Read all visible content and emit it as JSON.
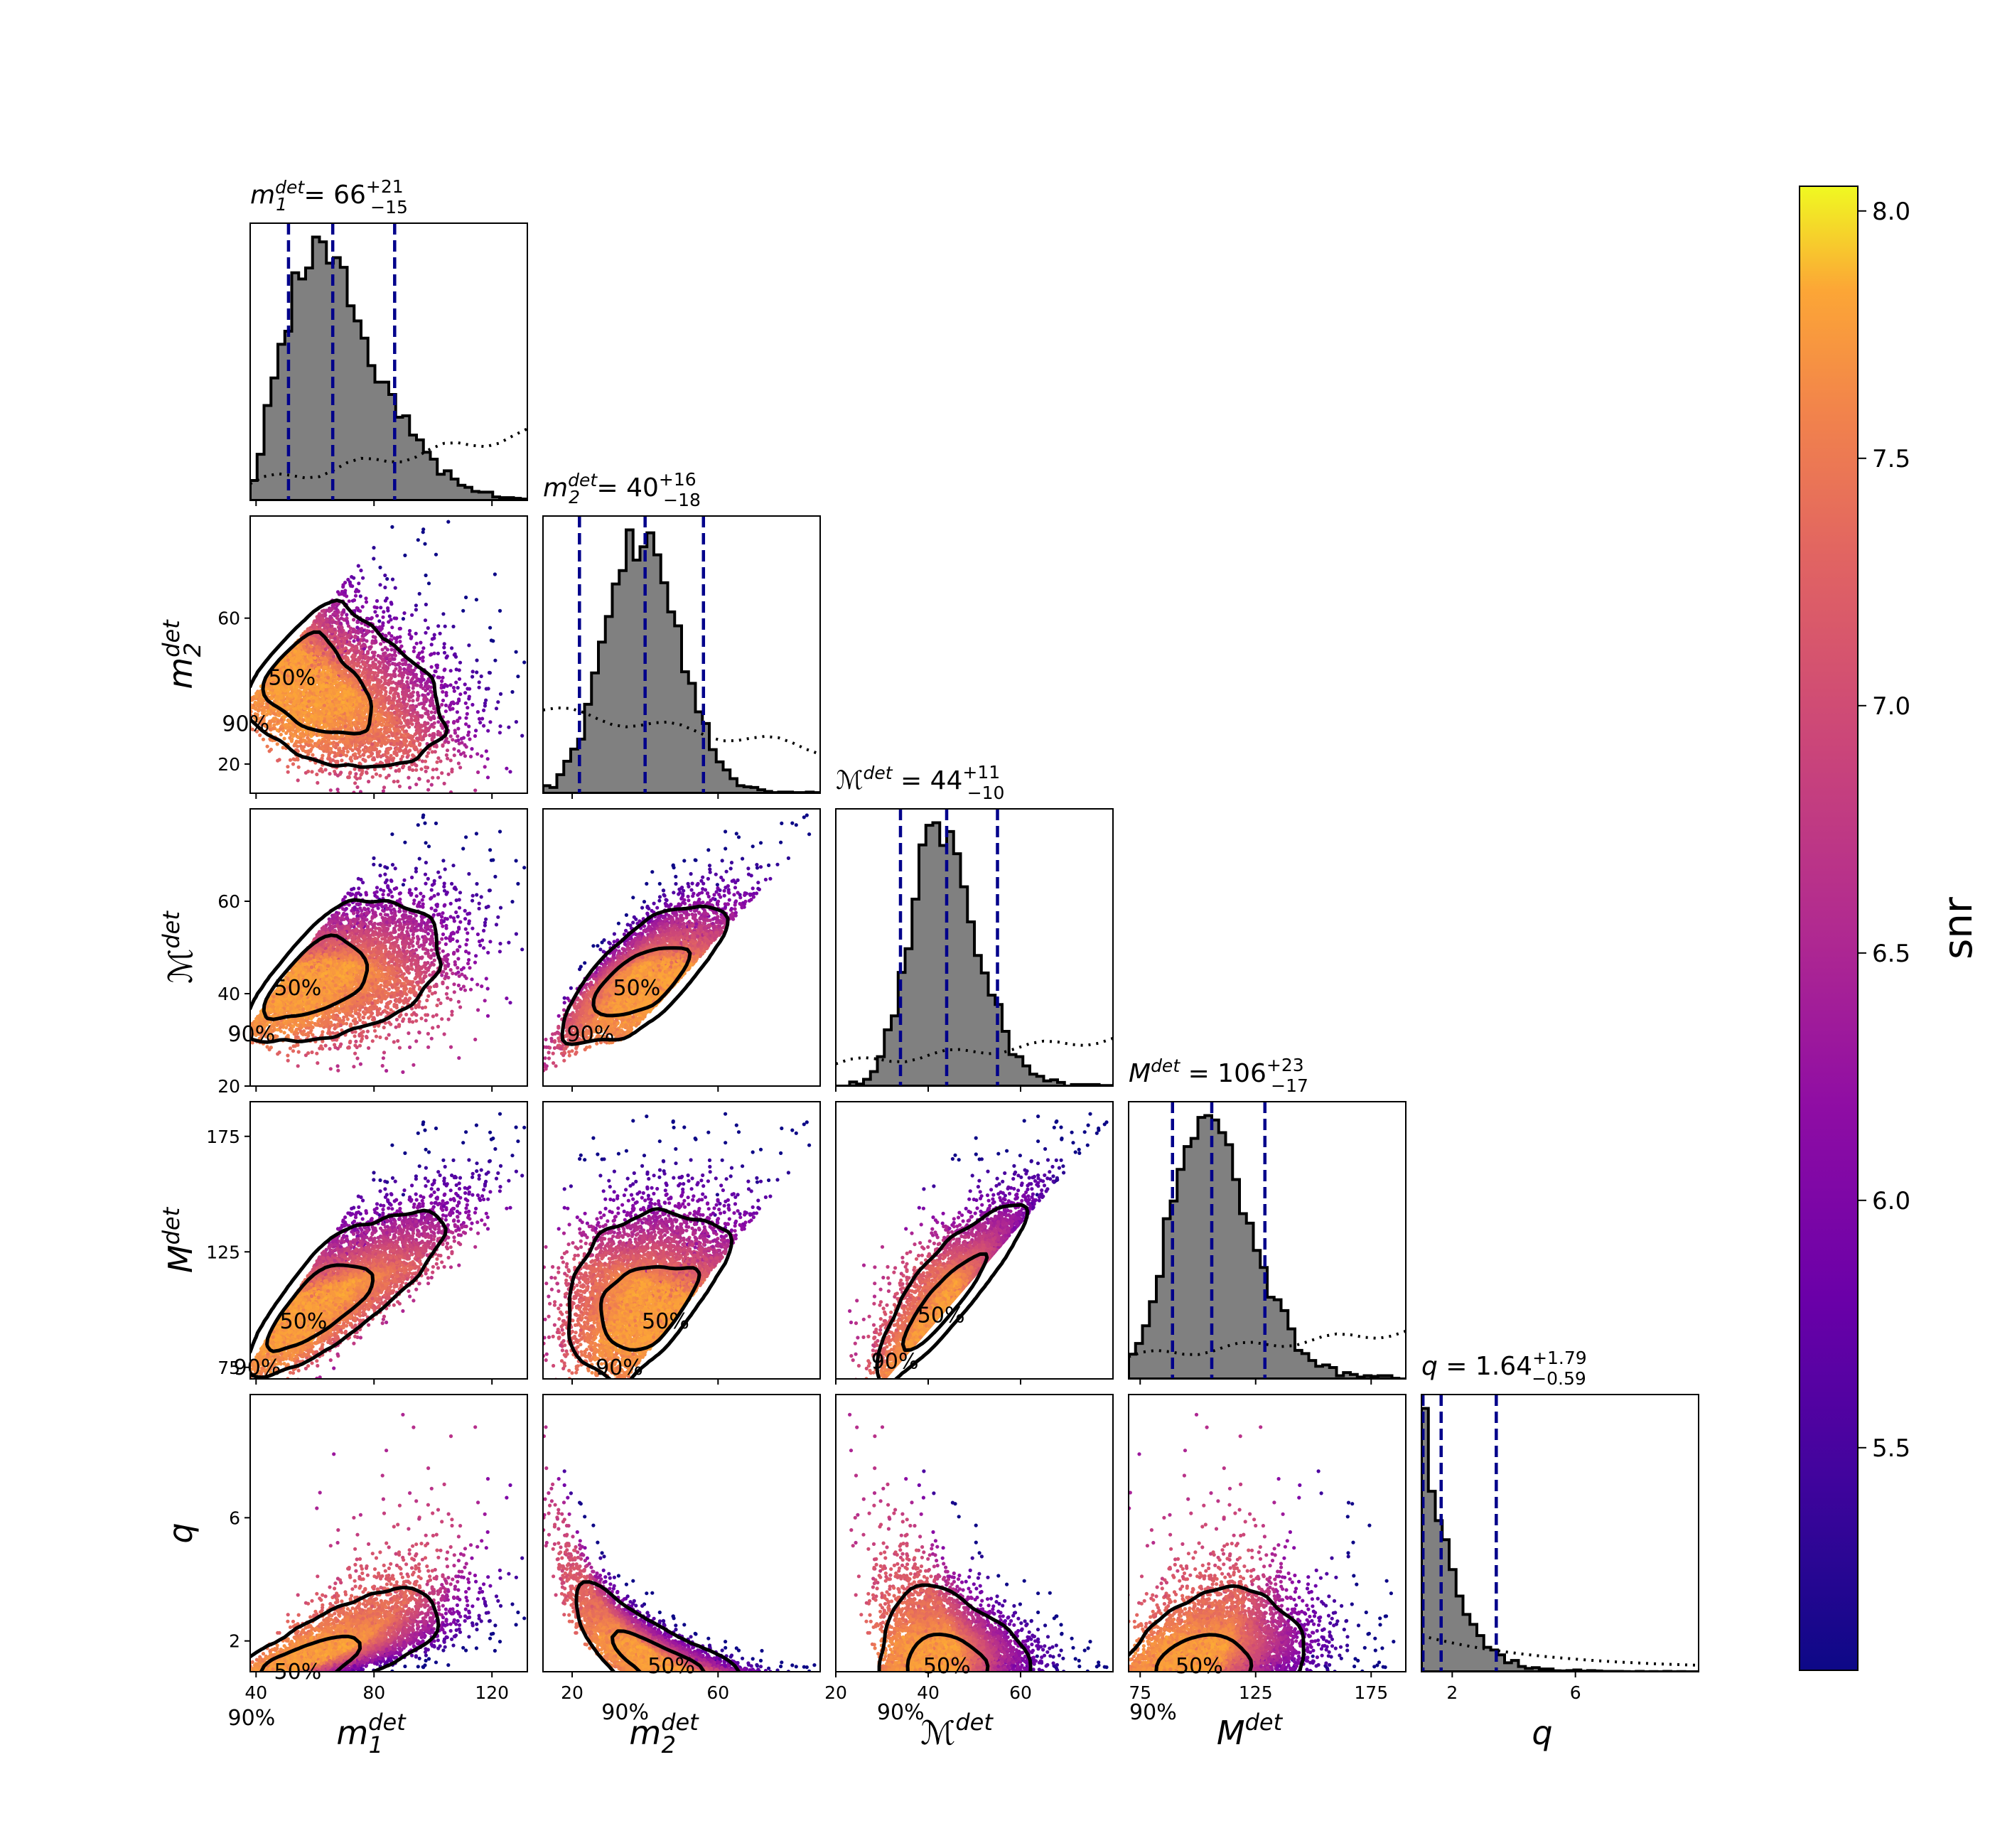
{
  "chart_data": {
    "type": "corner",
    "samples": 6000,
    "parameters": [
      {
        "key": "m1",
        "axis_label": "m",
        "sub": "1",
        "sup": "det",
        "title_main": "66",
        "title_plus": "+21",
        "title_minus": "−15",
        "median": 66,
        "lo": 51,
        "hi": 87,
        "range": [
          38,
          132
        ],
        "ticks": [
          "40",
          "80",
          "120"
        ],
        "tick_values": [
          40,
          80,
          120
        ]
      },
      {
        "key": "m2",
        "axis_label": "m",
        "sub": "2",
        "sup": "det",
        "title_main": "40",
        "title_plus": "+16",
        "title_minus": "−18",
        "median": 40,
        "lo": 22,
        "hi": 56,
        "range": [
          12,
          88
        ],
        "ticks": [
          "20",
          "60"
        ],
        "tick_values": [
          20,
          60
        ]
      },
      {
        "key": "Mc",
        "axis_label": "ℳ",
        "sub": "",
        "sup": "det",
        "title_main": "44",
        "title_plus": "+11",
        "title_minus": "−10",
        "median": 44,
        "lo": 34,
        "hi": 55,
        "range": [
          20,
          80
        ],
        "ticks": [
          "20",
          "40",
          "60"
        ],
        "tick_values": [
          20,
          40,
          60
        ]
      },
      {
        "key": "Mt",
        "axis_label": "M",
        "sub": "",
        "sup": "det",
        "title_main": "106",
        "title_plus": "+23",
        "title_minus": "−17",
        "median": 106,
        "lo": 89,
        "hi": 129,
        "range": [
          70,
          190
        ],
        "ticks": [
          "75",
          "125",
          "175"
        ],
        "tick_values": [
          75,
          125,
          175
        ]
      },
      {
        "key": "q",
        "axis_label": "q",
        "sub": "",
        "sup": "",
        "title_main": "1.64",
        "title_plus": "+1.79",
        "title_minus": "−0.59",
        "median": 1.64,
        "lo": 1.05,
        "hi": 3.43,
        "range": [
          1,
          10
        ],
        "ticks": [
          "2",
          "6"
        ],
        "tick_values": [
          2,
          6
        ]
      }
    ],
    "contour_levels": [
      "50%",
      "90%"
    ],
    "colorbar": {
      "label": "snr",
      "min": 5.05,
      "max": 8.05,
      "ticks": [
        "5.5",
        "6.0",
        "6.5",
        "7.0",
        "7.5",
        "8.0"
      ],
      "tick_values": [
        5.5,
        6.0,
        6.5,
        7.0,
        7.5,
        8.0
      ],
      "colormap": "plasma"
    },
    "colors": {
      "hist_fill": "#808080",
      "quantile_lines": "#00008b",
      "contour": "#000000",
      "prior": "#000000"
    }
  }
}
